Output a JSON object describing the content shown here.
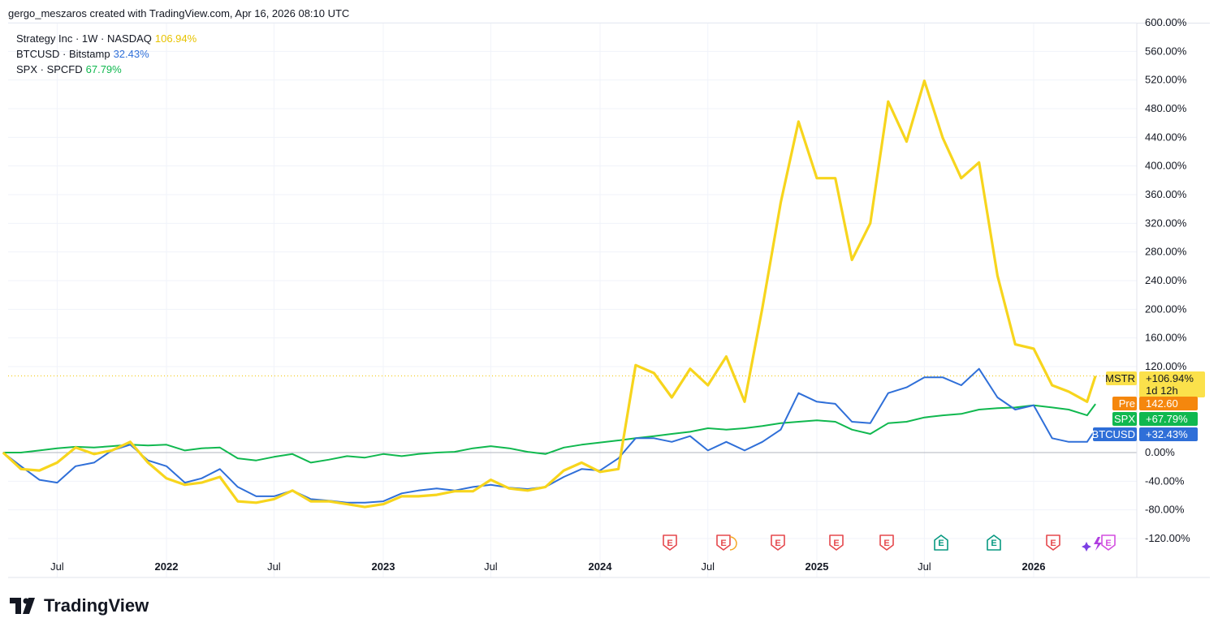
{
  "credit": "gergo_meszaros created with TradingView.com, Apr 16, 2026 08:10 UTC",
  "brand": "TradingView",
  "legend": [
    {
      "label": "Strategy Inc · 1W · NASDAQ",
      "value": "106.94%",
      "color": "#f7d51d"
    },
    {
      "label": "BTCUSD · Bitstamp",
      "value": "32.43%",
      "color": "#2f6fd8"
    },
    {
      "label": "SPX · SPCFD",
      "value": "67.79%",
      "color": "#10b84f"
    }
  ],
  "price_tags": [
    {
      "name": "MSTR",
      "value": "+106.94%",
      "extra": "1d 12h",
      "color": "#fbe14b",
      "text": "#131722"
    },
    {
      "name": "Pre",
      "value": "142.60",
      "color": "#f5870d",
      "text": "#ffffff"
    },
    {
      "name": "SPX",
      "value": "+67.79%",
      "color": "#10b84f",
      "text": "#ffffff"
    },
    {
      "name": "BTCUSD",
      "value": "+32.43%",
      "color": "#2f6fd8",
      "text": "#ffffff"
    }
  ],
  "earnings_markers": [
    {
      "label": "E",
      "color": "#e5484d"
    },
    {
      "label": "E",
      "color": "#e5484d"
    },
    {
      "label": "E",
      "color": "#e5484d"
    },
    {
      "label": "E",
      "color": "#e5484d"
    },
    {
      "label": "E",
      "color": "#e5484d"
    },
    {
      "label": "E",
      "color": "#089981"
    },
    {
      "label": "E",
      "color": "#089981"
    },
    {
      "label": "E",
      "color": "#e5484d"
    },
    {
      "label": "E",
      "color": "#d44ee0"
    }
  ],
  "chart_data": {
    "type": "line",
    "title": "",
    "xlabel": "",
    "ylabel": "",
    "y_unit": "%",
    "ylim": [
      -130,
      600
    ],
    "y_ticks": [
      "600.00%",
      "560.00%",
      "520.00%",
      "480.00%",
      "440.00%",
      "400.00%",
      "360.00%",
      "320.00%",
      "280.00%",
      "240.00%",
      "200.00%",
      "160.00%",
      "120.00%",
      "0.00%",
      "-40.00%",
      "-80.00%",
      "-120.00%"
    ],
    "y_tick_values": [
      600,
      560,
      520,
      480,
      440,
      400,
      360,
      320,
      280,
      240,
      200,
      160,
      120,
      0,
      -40,
      -80,
      -120
    ],
    "x_ticks": [
      {
        "date": "2021-07-01",
        "label": "Jul"
      },
      {
        "date": "2022-01-01",
        "label": "2022"
      },
      {
        "date": "2022-07-01",
        "label": "Jul"
      },
      {
        "date": "2023-01-01",
        "label": "2023"
      },
      {
        "date": "2023-07-01",
        "label": "Jul"
      },
      {
        "date": "2024-01-01",
        "label": "2024"
      },
      {
        "date": "2024-07-01",
        "label": "Jul"
      },
      {
        "date": "2025-01-01",
        "label": "2025"
      },
      {
        "date": "2025-07-01",
        "label": "Jul"
      },
      {
        "date": "2026-01-01",
        "label": "2026"
      }
    ],
    "xlim": [
      "2021-04-01",
      "2026-05-25"
    ],
    "grid": true,
    "legend_position": "top-left",
    "dates": [
      "2021-04-01",
      "2021-05-01",
      "2021-06-01",
      "2021-07-01",
      "2021-08-01",
      "2021-09-01",
      "2021-10-01",
      "2021-11-01",
      "2021-12-01",
      "2022-01-01",
      "2022-02-01",
      "2022-03-01",
      "2022-04-01",
      "2022-05-01",
      "2022-06-01",
      "2022-07-01",
      "2022-08-01",
      "2022-09-01",
      "2022-10-01",
      "2022-11-01",
      "2022-12-01",
      "2023-01-01",
      "2023-02-01",
      "2023-03-01",
      "2023-04-01",
      "2023-05-01",
      "2023-06-01",
      "2023-07-01",
      "2023-08-01",
      "2023-09-01",
      "2023-10-01",
      "2023-11-01",
      "2023-12-01",
      "2024-01-01",
      "2024-02-01",
      "2024-03-01",
      "2024-04-01",
      "2024-05-01",
      "2024-06-01",
      "2024-07-01",
      "2024-08-01",
      "2024-09-01",
      "2024-10-01",
      "2024-11-01",
      "2024-12-01",
      "2025-01-01",
      "2025-02-01",
      "2025-03-01",
      "2025-04-01",
      "2025-05-01",
      "2025-06-01",
      "2025-07-01",
      "2025-08-01",
      "2025-09-01",
      "2025-10-01",
      "2025-11-01",
      "2025-12-01",
      "2026-01-01",
      "2026-02-01",
      "2026-03-01",
      "2026-04-01",
      "2026-04-15"
    ],
    "series": [
      {
        "name": "MSTR",
        "color": "#f7d51d",
        "values": [
          0,
          -23,
          -25,
          -14,
          7,
          -2,
          3,
          15,
          -14,
          -36,
          -45,
          -42,
          -34,
          -68,
          -70,
          -65,
          -53,
          -68,
          -68,
          -72,
          -76,
          -72,
          -61,
          -61,
          -59,
          -54,
          -54,
          -38,
          -50,
          -53,
          -48,
          -25,
          -14,
          -27,
          -23,
          122,
          111,
          77,
          117,
          94,
          134,
          71,
          202,
          349,
          462,
          383,
          383,
          269,
          320,
          490,
          434,
          519,
          439,
          383,
          405,
          247,
          151,
          145,
          94,
          85,
          71,
          106.94
        ]
      },
      {
        "name": "BTCUSD",
        "color": "#2f6fd8",
        "values": [
          0,
          -19,
          -38,
          -42,
          -19,
          -14,
          3,
          11,
          -11,
          -19,
          -42,
          -36,
          -23,
          -48,
          -61,
          -61,
          -53,
          -65,
          -67,
          -70,
          -70,
          -68,
          -57,
          -53,
          -50,
          -53,
          -48,
          -45,
          -49,
          -51,
          -48,
          -34,
          -23,
          -25,
          -8,
          20,
          20,
          15,
          23,
          3,
          15,
          3,
          15,
          32,
          83,
          71,
          68,
          43,
          41,
          83,
          91,
          105,
          105,
          94,
          117,
          77,
          60,
          66,
          20,
          15,
          15,
          32.43
        ]
      },
      {
        "name": "SPX",
        "color": "#10b84f",
        "values": [
          0,
          0,
          3,
          6,
          8,
          7,
          9,
          11,
          10,
          11,
          3,
          6,
          7,
          -8,
          -11,
          -6,
          -2,
          -14,
          -10,
          -5,
          -7,
          -2,
          -5,
          -2,
          0,
          1,
          6,
          9,
          6,
          1,
          -2,
          7,
          11,
          14,
          17,
          20,
          23,
          26,
          29,
          34,
          32,
          34,
          37,
          41,
          43,
          45,
          43,
          32,
          26,
          41,
          43,
          49,
          52,
          54,
          60,
          62,
          63,
          66,
          63,
          60,
          52,
          67.79
        ]
      }
    ]
  }
}
